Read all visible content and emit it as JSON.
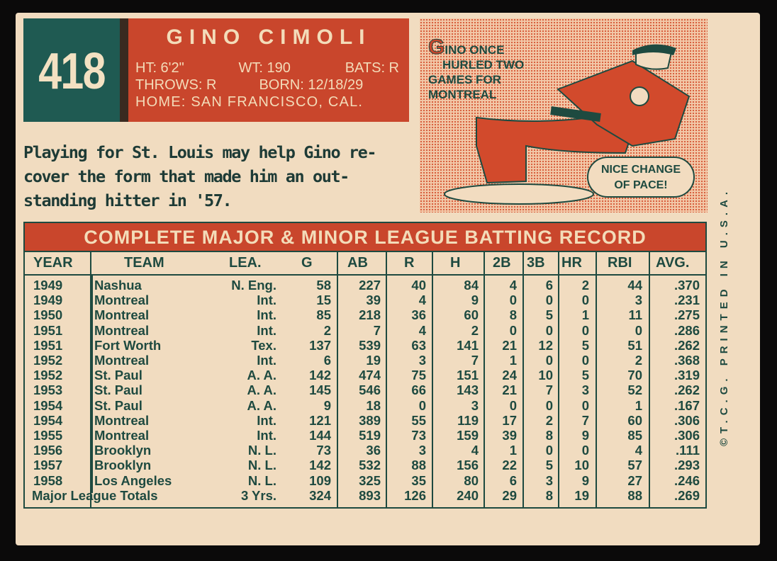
{
  "card_number": "418",
  "player": {
    "name": "GINO CIMOLI",
    "ht": "HT: 6'2\"",
    "wt": "WT: 190",
    "bats": "BATS: R",
    "throws": "THROWS: R",
    "born": "BORN: 12/18/29",
    "home": "HOME: SAN FRANCISCO, CAL."
  },
  "bio": [
    "Playing for St. Louis may help Gino re-",
    "cover the form that made him an out-",
    "standing hitter in '57."
  ],
  "cartoon": {
    "caption_initial": "G",
    "caption": [
      "INO ONCE",
      "HURLED TWO",
      "GAMES FOR",
      "MONTREAL"
    ],
    "bubble": [
      "NICE CHANGE",
      "OF PACE!"
    ]
  },
  "imprint": "©T.C.G. PRINTED IN U.S.A.",
  "table": {
    "title": "COMPLETE MAJOR & MINOR LEAGUE BATTING RECORD",
    "headers": [
      "YEAR",
      "TEAM",
      "LEA.",
      "G",
      "AB",
      "R",
      "H",
      "2B",
      "3B",
      "HR",
      "RBI",
      "AVG."
    ],
    "rows": [
      [
        "1949",
        "Nashua",
        "N. Eng.",
        "58",
        "227",
        "40",
        "84",
        "4",
        "6",
        "2",
        "44",
        ".370"
      ],
      [
        "1949",
        "Montreal",
        "Int.",
        "15",
        "39",
        "4",
        "9",
        "0",
        "0",
        "0",
        "3",
        ".231"
      ],
      [
        "1950",
        "Montreal",
        "Int.",
        "85",
        "218",
        "36",
        "60",
        "8",
        "5",
        "1",
        "11",
        ".275"
      ],
      [
        "1951",
        "Montreal",
        "Int.",
        "2",
        "7",
        "4",
        "2",
        "0",
        "0",
        "0",
        "0",
        ".286"
      ],
      [
        "1951",
        "Fort Worth",
        "Tex.",
        "137",
        "539",
        "63",
        "141",
        "21",
        "12",
        "5",
        "51",
        ".262"
      ],
      [
        "1952",
        "Montreal",
        "Int.",
        "6",
        "19",
        "3",
        "7",
        "1",
        "0",
        "0",
        "2",
        ".368"
      ],
      [
        "1952",
        "St. Paul",
        "A. A.",
        "142",
        "474",
        "75",
        "151",
        "24",
        "10",
        "5",
        "70",
        ".319"
      ],
      [
        "1953",
        "St. Paul",
        "A. A.",
        "145",
        "546",
        "66",
        "143",
        "21",
        "7",
        "3",
        "52",
        ".262"
      ],
      [
        "1954",
        "St. Paul",
        "A. A.",
        "9",
        "18",
        "0",
        "3",
        "0",
        "0",
        "0",
        "1",
        ".167"
      ],
      [
        "1954",
        "Montreal",
        "Int.",
        "121",
        "389",
        "55",
        "119",
        "17",
        "2",
        "7",
        "60",
        ".306"
      ],
      [
        "1955",
        "Montreal",
        "Int.",
        "144",
        "519",
        "73",
        "159",
        "39",
        "8",
        "9",
        "85",
        ".306"
      ],
      [
        "1956",
        "Brooklyn",
        "N. L.",
        "73",
        "36",
        "3",
        "4",
        "1",
        "0",
        "0",
        "4",
        ".111"
      ],
      [
        "1957",
        "Brooklyn",
        "N. L.",
        "142",
        "532",
        "88",
        "156",
        "22",
        "5",
        "10",
        "57",
        ".293"
      ],
      [
        "1958",
        "Los Angeles",
        "N. L.",
        "109",
        "325",
        "35",
        "80",
        "6",
        "3",
        "9",
        "27",
        ".246"
      ]
    ],
    "totals": [
      "Major League Totals",
      "3 Yrs.",
      "324",
      "893",
      "126",
      "240",
      "29",
      "8",
      "19",
      "88",
      ".269"
    ]
  },
  "colors": {
    "card": "#f1dcc0",
    "red": "#c9462c",
    "green": "#1f5a52",
    "ink": "#1e4a40"
  }
}
